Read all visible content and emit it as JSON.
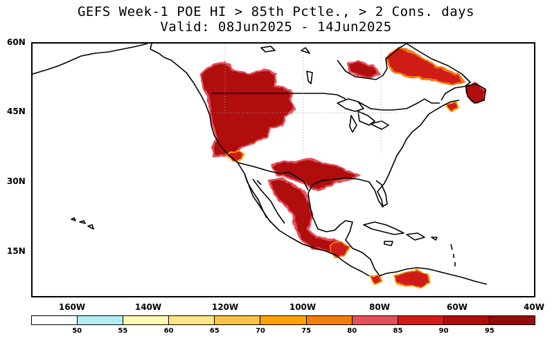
{
  "title": {
    "line1": "GEFS Week-1 POE HI > 85th Pctle., > 2 Cons. days",
    "line2": "Valid: 08Jun2025 - 14Jun2025"
  },
  "map": {
    "latitude_labels": [
      "60N",
      "45N",
      "30N",
      "15N"
    ],
    "longitude_labels": [
      "160W",
      "140W",
      "120W",
      "100W",
      "80W",
      "60W",
      "40W"
    ]
  },
  "colorbar": {
    "labels": [
      "50",
      "55",
      "60",
      "65",
      "70",
      "75",
      "80",
      "85",
      "90",
      "95"
    ],
    "colors": [
      "#ffffff",
      "#b4ecf4",
      "#fef9b0",
      "#fce586",
      "#f8c247",
      "#fca204",
      "#f47c0a",
      "#e4505a",
      "#d01c14",
      "#b00b0b",
      "#960a0a"
    ]
  }
}
